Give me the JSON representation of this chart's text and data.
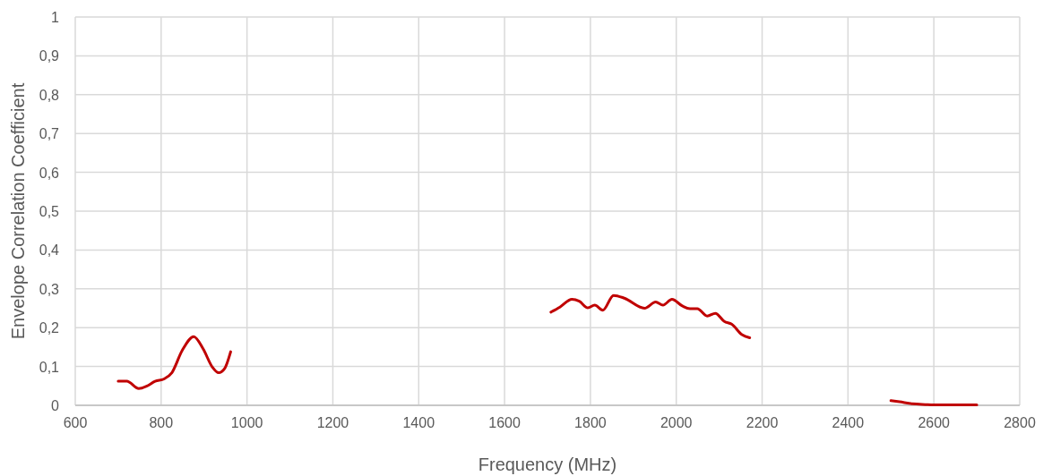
{
  "chart_data": {
    "type": "line",
    "xlabel": "Frequency (MHz)",
    "ylabel": "Envelope Correlation Coefficient",
    "xlim": [
      600,
      2800
    ],
    "ylim": [
      0,
      1
    ],
    "xticks": [
      600,
      800,
      1000,
      1200,
      1400,
      1600,
      1800,
      2000,
      2200,
      2400,
      2600,
      2800
    ],
    "yticks": [
      0,
      {
        "value": 0.1,
        "label": "0,1"
      },
      {
        "value": 0.2,
        "label": "0,2"
      },
      {
        "value": 0.3,
        "label": "0,3"
      },
      {
        "value": 0.4,
        "label": "0,4"
      },
      {
        "value": 0.5,
        "label": "0,5"
      },
      {
        "value": 0.6,
        "label": "0,6"
      },
      {
        "value": 0.7,
        "label": "0,7"
      },
      {
        "value": 0.8,
        "label": "0,8"
      },
      {
        "value": 0.9,
        "label": "0,9"
      },
      1
    ],
    "grid": true,
    "marker": "none",
    "line_style": "solid",
    "series": [
      {
        "color": "#c00000",
        "x": [
          700,
          720,
          748,
          766,
          786,
          807,
          825,
          849,
          876,
          898,
          919,
          934,
          948,
          962,
          1300,
          1708,
          1729,
          1757,
          1774,
          1794,
          1810,
          1829,
          1854,
          1879,
          1926,
          1952,
          1969,
          1990,
          2014,
          2032,
          2049,
          2072,
          2091,
          2112,
          2129,
          2153,
          2171,
          2300,
          2500,
          2520,
          2550,
          2580,
          2600,
          2650,
          2700
        ],
        "values": [
          0.062,
          0.062,
          0.043,
          0.049,
          0.062,
          0.068,
          0.084,
          0.141,
          0.177,
          0.145,
          0.099,
          0.084,
          0.095,
          0.138,
          null,
          0.24,
          0.253,
          0.273,
          0.268,
          0.251,
          0.258,
          0.245,
          0.283,
          0.276,
          0.25,
          0.266,
          0.258,
          0.273,
          0.256,
          0.249,
          0.249,
          0.23,
          0.237,
          0.216,
          0.209,
          0.182,
          0.174,
          null,
          0.012,
          0.009,
          0.004,
          0.002,
          0.001,
          0.001,
          0.001
        ]
      }
    ]
  }
}
